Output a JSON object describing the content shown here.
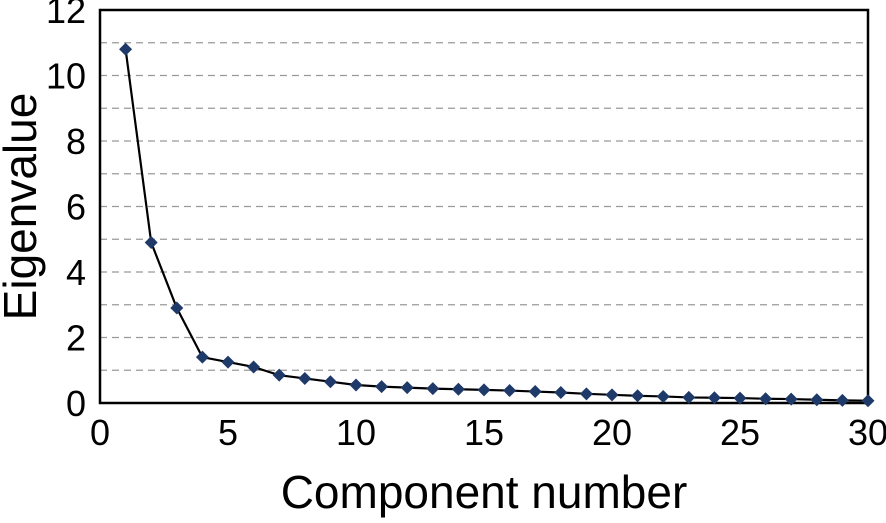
{
  "chart_data": {
    "type": "line",
    "title": "",
    "xlabel": "Component number",
    "ylabel": "Eigenvalue",
    "x": [
      1,
      2,
      3,
      4,
      5,
      6,
      7,
      8,
      9,
      10,
      11,
      12,
      13,
      14,
      15,
      16,
      17,
      18,
      19,
      20,
      21,
      22,
      23,
      24,
      25,
      26,
      27,
      28,
      29,
      30
    ],
    "values": [
      10.8,
      4.9,
      2.9,
      1.4,
      1.25,
      1.1,
      0.85,
      0.75,
      0.65,
      0.55,
      0.5,
      0.47,
      0.44,
      0.42,
      0.4,
      0.38,
      0.35,
      0.32,
      0.28,
      0.25,
      0.22,
      0.2,
      0.17,
      0.16,
      0.15,
      0.13,
      0.12,
      0.1,
      0.08,
      0.07
    ],
    "xlim": [
      0,
      30
    ],
    "ylim": [
      0,
      12
    ],
    "x_ticks": [
      0,
      5,
      10,
      15,
      20,
      25,
      30
    ],
    "y_ticks": [
      0,
      2,
      4,
      6,
      8,
      10,
      12
    ],
    "y_grid_step": 1,
    "grid": "horizontal-dashed",
    "legend": "none",
    "marker": "diamond",
    "colors": {
      "line": "#000000",
      "marker": "#1f3a68",
      "grid": "#999999",
      "frame": "#000000",
      "text": "#000000",
      "background": "#ffffff"
    }
  }
}
